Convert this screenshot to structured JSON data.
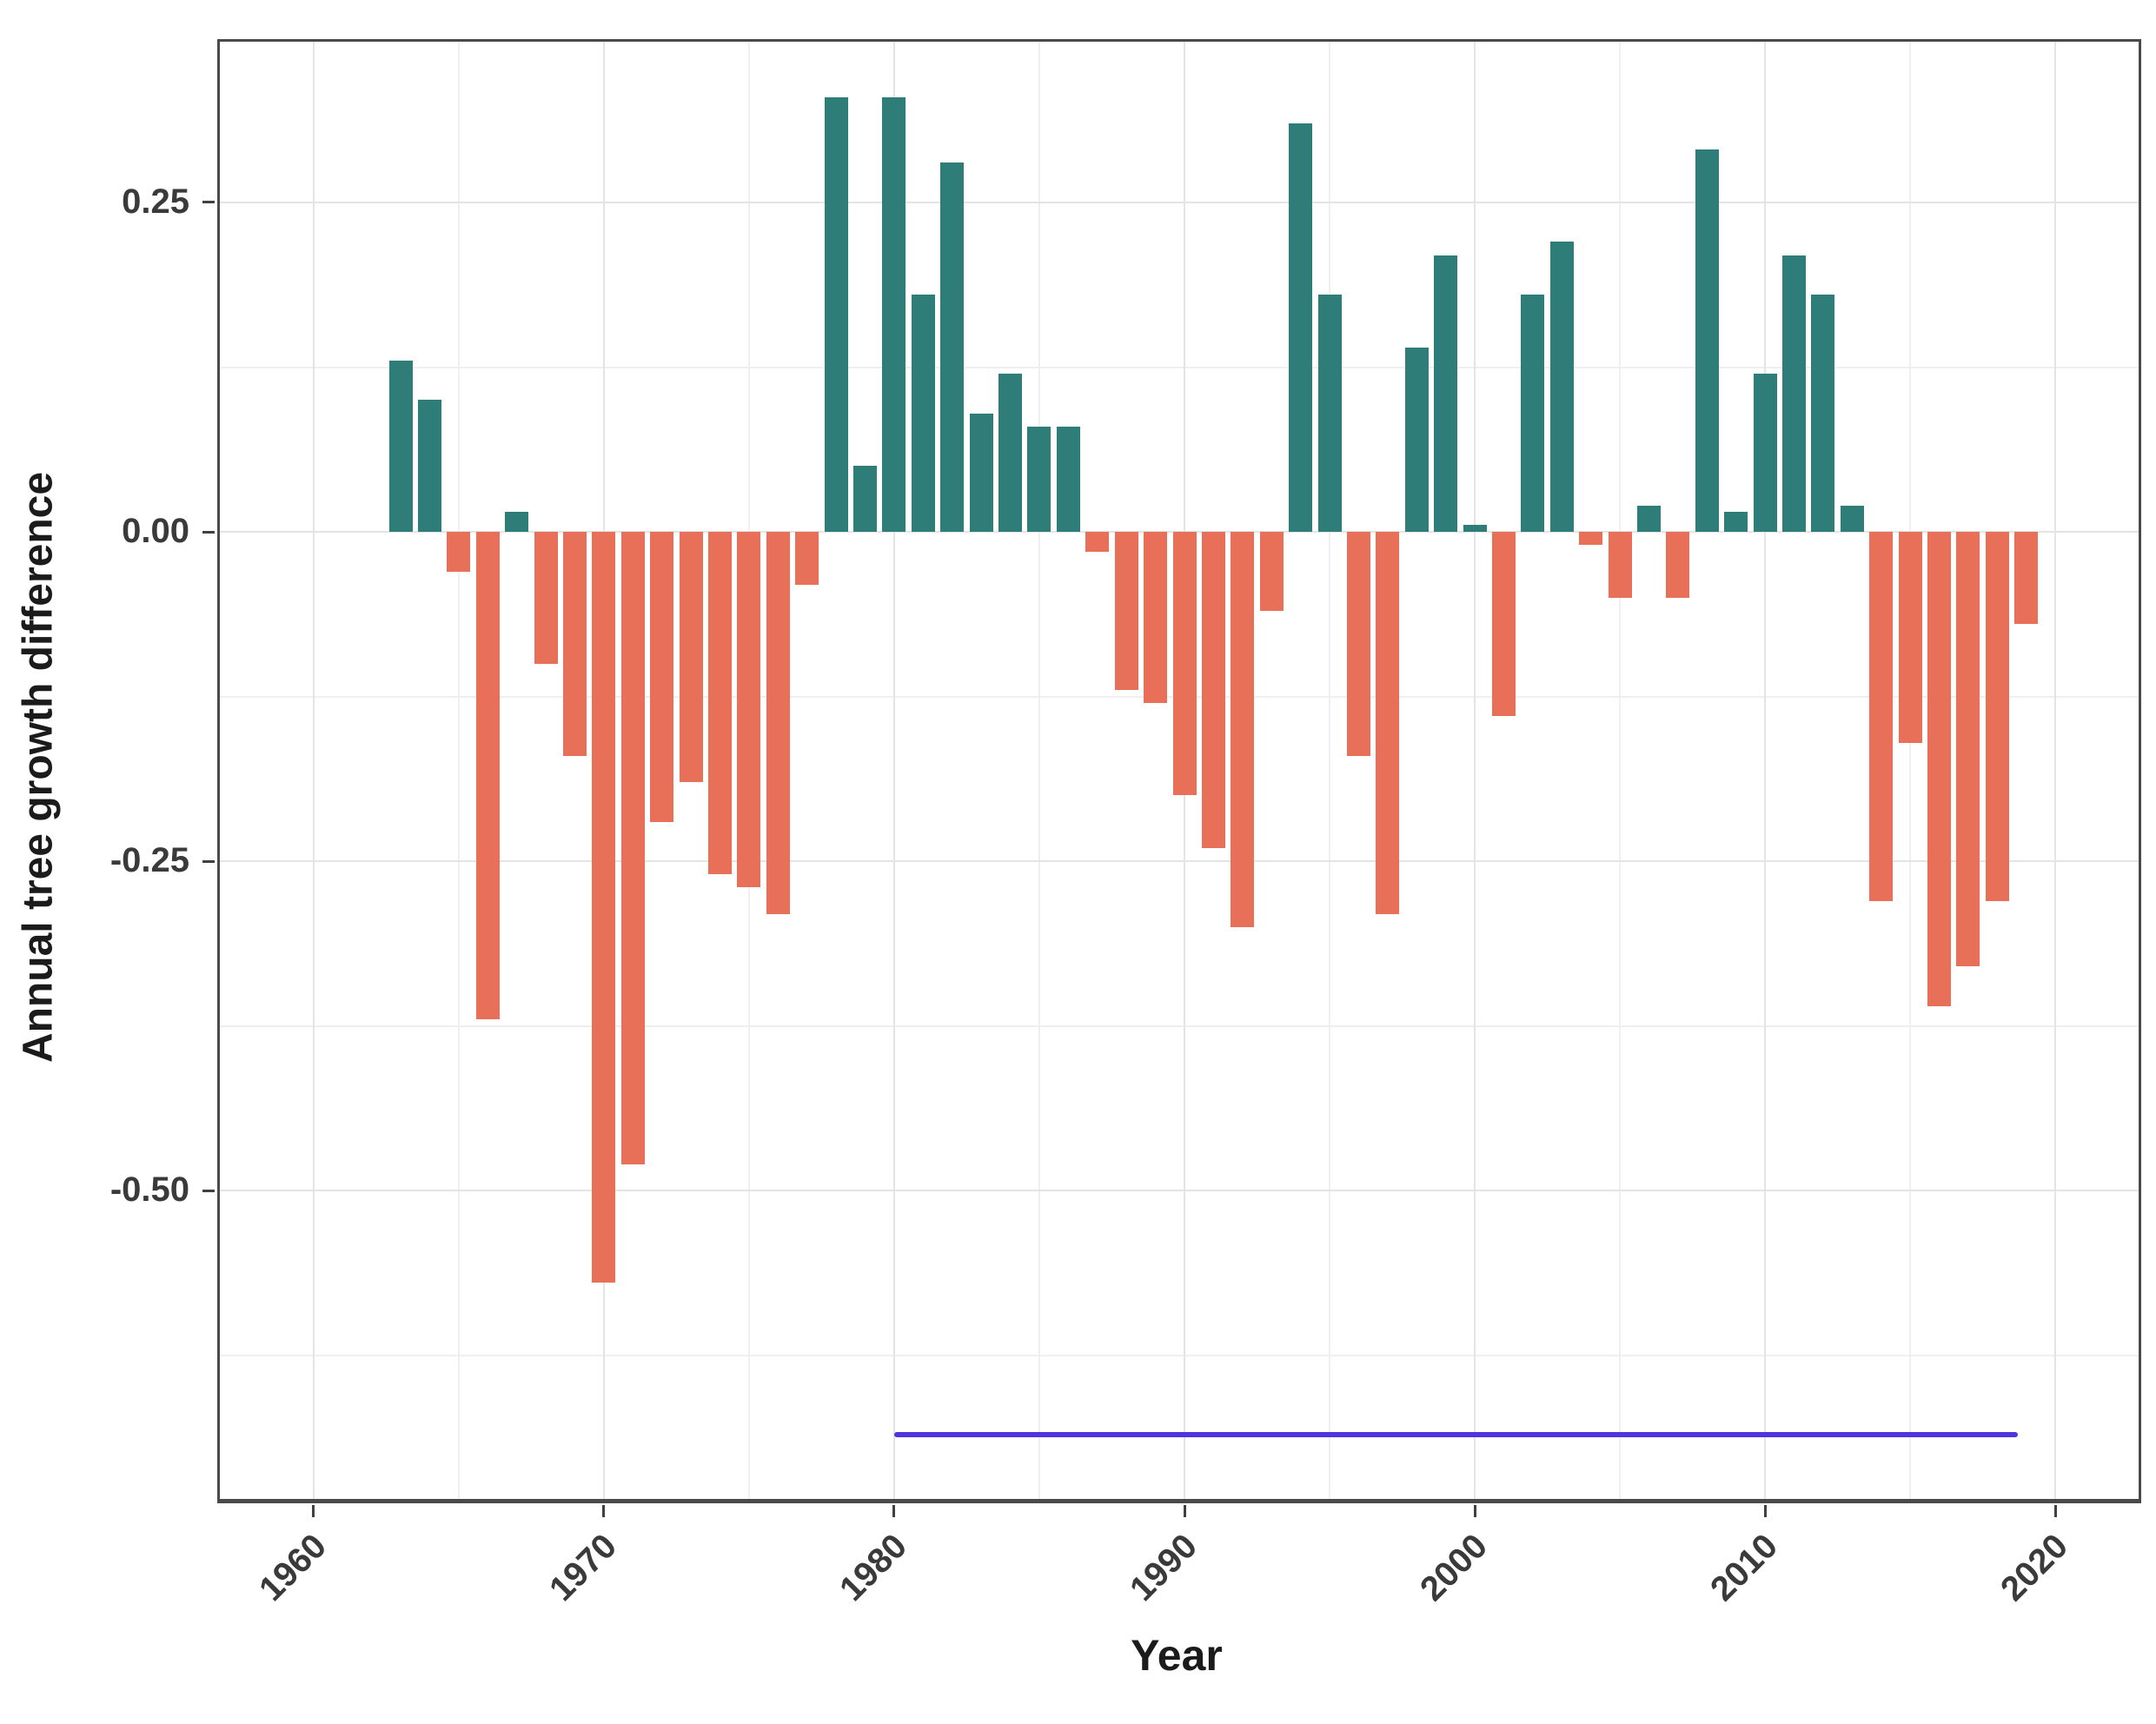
{
  "chart_data": {
    "type": "bar",
    "title": "",
    "xlabel": "Year",
    "ylabel": "Annual tree growth difference",
    "x_domain": [
      1956.77,
      2022.87
    ],
    "y_domain": [
      -0.734,
      0.372
    ],
    "x_ticks": [
      1960,
      1970,
      1980,
      1990,
      2000,
      2010,
      2020
    ],
    "x_tick_labels": [
      "1960",
      "1970",
      "1980",
      "1990",
      "2000",
      "2010",
      "2020"
    ],
    "y_ticks": [
      0.25,
      0.0,
      -0.25,
      -0.5
    ],
    "y_tick_labels": [
      "0.25",
      "0.00",
      "-0.25",
      "-0.50"
    ],
    "x_minor_gridlines": [
      1965,
      1975,
      1985,
      1995,
      2005,
      2015
    ],
    "y_minor_gridlines": [
      0.125,
      -0.125,
      -0.375,
      -0.625
    ],
    "bar_width_ratio": 0.8,
    "grid": "on",
    "legend": "none",
    "series": [
      {
        "name": "Annual tree growth difference",
        "points": [
          [
            1963,
            0.13
          ],
          [
            1964,
            0.1
          ],
          [
            1965,
            -0.03
          ],
          [
            1966,
            -0.37
          ],
          [
            1967,
            0.015
          ],
          [
            1968,
            -0.1
          ],
          [
            1969,
            -0.17
          ],
          [
            1970,
            -0.57
          ],
          [
            1971,
            -0.48
          ],
          [
            1972,
            -0.22
          ],
          [
            1973,
            -0.19
          ],
          [
            1974,
            -0.26
          ],
          [
            1975,
            -0.27
          ],
          [
            1976,
            -0.29
          ],
          [
            1977,
            -0.04
          ],
          [
            1978,
            0.33
          ],
          [
            1979,
            0.05
          ],
          [
            1980,
            0.33
          ],
          [
            1981,
            0.18
          ],
          [
            1982,
            0.28
          ],
          [
            1983,
            0.09
          ],
          [
            1984,
            0.12
          ],
          [
            1985,
            0.08
          ],
          [
            1986,
            0.08
          ],
          [
            1987,
            -0.015
          ],
          [
            1988,
            -0.12
          ],
          [
            1989,
            -0.13
          ],
          [
            1990,
            -0.2
          ],
          [
            1991,
            -0.24
          ],
          [
            1992,
            -0.3
          ],
          [
            1993,
            -0.06
          ],
          [
            1994,
            0.31
          ],
          [
            1995,
            0.18
          ],
          [
            1996,
            -0.17
          ],
          [
            1997,
            -0.29
          ],
          [
            1998,
            0.14
          ],
          [
            1999,
            0.21
          ],
          [
            2000,
            0.005
          ],
          [
            2001,
            -0.14
          ],
          [
            2002,
            0.18
          ],
          [
            2003,
            0.22
          ],
          [
            2004,
            -0.01
          ],
          [
            2005,
            -0.05
          ],
          [
            2006,
            0.02
          ],
          [
            2007,
            -0.05
          ],
          [
            2008,
            0.29
          ],
          [
            2009,
            0.015
          ],
          [
            2010,
            0.12
          ],
          [
            2011,
            0.21
          ],
          [
            2012,
            0.18
          ],
          [
            2013,
            0.02
          ],
          [
            2014,
            -0.28
          ],
          [
            2015,
            -0.16
          ],
          [
            2016,
            -0.36
          ],
          [
            2017,
            -0.33
          ],
          [
            2018,
            -0.28
          ],
          [
            2019,
            -0.07
          ]
        ]
      }
    ],
    "reference_line": {
      "y": -0.685,
      "x_start": 1980,
      "x_end": 2018.7,
      "color": "#5134DF"
    },
    "colors": {
      "positive_bar": "#2E7D79",
      "negative_bar": "#E86F58",
      "reference_line": "#5134DF",
      "major_gridline": "#E4E4E4",
      "minor_gridline": "#EFEFEF",
      "panel_border": "#4A4A4A",
      "axis_text": "#3A3A3A",
      "axis_title": "#1B1B1B",
      "background": "#FFFFFF"
    }
  }
}
